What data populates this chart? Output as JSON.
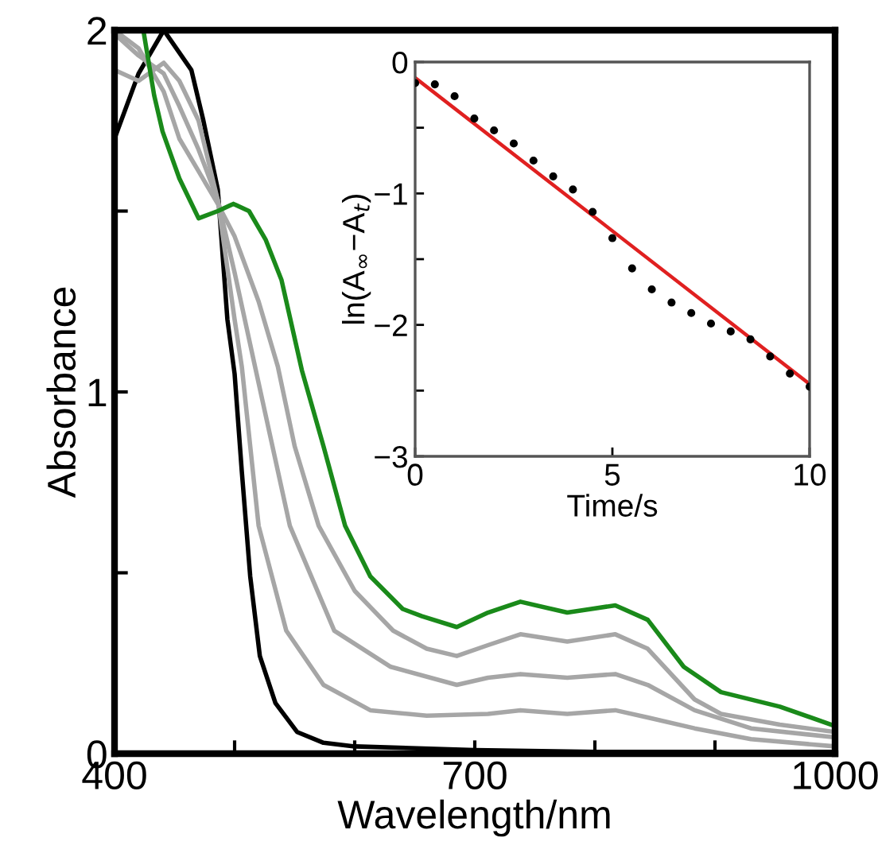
{
  "chart_data": [
    {
      "type": "line",
      "xlabel": "Wavelength/nm",
      "ylabel": "Absorbance",
      "xlim": [
        400,
        1000
      ],
      "ylim": [
        0,
        2
      ],
      "xticks": [
        400,
        {
          "value": 500,
          "label": null
        },
        {
          "value": 600,
          "label": null
        },
        700,
        {
          "value": 800,
          "label": null
        },
        {
          "value": 900,
          "label": null
        },
        1000
      ],
      "yticks": [
        0,
        {
          "value": 0.5,
          "label": null
        },
        1,
        {
          "value": 1.5,
          "label": null
        },
        2
      ],
      "grid": false,
      "legend": false,
      "series": [
        {
          "color": "#000000",
          "x": [
            400,
            420,
            441,
            464,
            474,
            486,
            494,
            500,
            506,
            513,
            521,
            534,
            552,
            574,
            600,
            700,
            800,
            1000
          ],
          "values": [
            1.7,
            1.88,
            2.0,
            1.89,
            1.75,
            1.56,
            1.2,
            1.05,
            0.78,
            0.49,
            0.27,
            0.14,
            0.06,
            0.03,
            0.02,
            0.01,
            0.005,
            0.005
          ]
        },
        {
          "color": "#a6a6a6",
          "x": [
            400,
            420,
            441,
            454,
            470,
            486,
            500,
            520,
            536,
            550,
            570,
            600,
            632,
            660,
            685,
            711,
            738,
            777,
            817,
            844,
            883,
            905,
            954,
            1000
          ],
          "values": [
            2.0,
            1.95,
            1.83,
            1.7,
            1.61,
            1.52,
            1.43,
            1.25,
            1.07,
            0.85,
            0.63,
            0.45,
            0.34,
            0.29,
            0.27,
            0.3,
            0.33,
            0.31,
            0.33,
            0.29,
            0.15,
            0.11,
            0.08,
            0.06
          ]
        },
        {
          "color": "#a6a6a6",
          "x": [
            400,
            420,
            441,
            454,
            470,
            486,
            500,
            517,
            546,
            583,
            630,
            685,
            711,
            738,
            777,
            817,
            844,
            883,
            930,
            1000
          ],
          "values": [
            1.99,
            1.93,
            1.88,
            1.79,
            1.67,
            1.53,
            1.33,
            1.07,
            0.63,
            0.34,
            0.24,
            0.19,
            0.21,
            0.22,
            0.21,
            0.22,
            0.19,
            0.12,
            0.07,
            0.045
          ]
        },
        {
          "color": "#a6a6a6",
          "x": [
            400,
            420,
            441,
            454,
            470,
            486,
            500,
            506,
            520,
            543,
            574,
            613,
            660,
            711,
            738,
            777,
            817,
            844,
            883,
            930,
            1000
          ],
          "values": [
            1.89,
            1.86,
            1.91,
            1.86,
            1.75,
            1.53,
            1.2,
            1.07,
            0.63,
            0.34,
            0.19,
            0.12,
            0.105,
            0.11,
            0.12,
            0.11,
            0.12,
            0.1,
            0.07,
            0.04,
            0.02
          ]
        },
        {
          "color": "#1a8a1a",
          "x": [
            424,
            433,
            440,
            454,
            470,
            486,
            499,
            512,
            526,
            539,
            556,
            574,
            592,
            613,
            640,
            656,
            685,
            711,
            738,
            777,
            817,
            844,
            874,
            905,
            954,
            997
          ],
          "values": [
            2.0,
            1.82,
            1.72,
            1.59,
            1.48,
            1.5,
            1.52,
            1.5,
            1.42,
            1.31,
            1.06,
            0.85,
            0.63,
            0.49,
            0.4,
            0.38,
            0.35,
            0.39,
            0.42,
            0.39,
            0.41,
            0.37,
            0.24,
            0.17,
            0.13,
            0.08
          ]
        }
      ]
    },
    {
      "type": "scatter",
      "xlabel": "Time/s",
      "ylabel": "ln(A$_{∞}$−A$_{t}$)",
      "xlim": [
        0,
        10
      ],
      "ylim": [
        -3,
        0
      ],
      "xticks": [
        0,
        5,
        10
      ],
      "yticks": [
        {
          "value": -3,
          "label": "−3"
        },
        {
          "value": -2.5,
          "label": null
        },
        {
          "value": -2,
          "label": "−2"
        },
        {
          "value": -1.5,
          "label": null
        },
        {
          "value": -1,
          "label": "−1"
        },
        {
          "value": -0.5,
          "label": null
        },
        0
      ],
      "grid": false,
      "legend": false,
      "series": [
        {
          "type": "scatter",
          "color": "#000000",
          "marker": "circle",
          "x": [
            0,
            0.5,
            1,
            1.5,
            2,
            2.5,
            3,
            3.5,
            4,
            4.5,
            5,
            5.5,
            6,
            6.5,
            7,
            7.5,
            8,
            8.5,
            9,
            9.5,
            10
          ],
          "values": [
            -0.16,
            -0.17,
            -0.26,
            -0.43,
            -0.52,
            -0.62,
            -0.75,
            -0.87,
            -0.97,
            -1.14,
            -1.34,
            -1.57,
            -1.73,
            -1.83,
            -1.91,
            -1.99,
            -2.05,
            -2.11,
            -2.24,
            -2.37,
            -2.47
          ]
        },
        {
          "type": "line",
          "color": "#e02020",
          "x": [
            0,
            10
          ],
          "values": [
            -0.12,
            -2.45
          ]
        }
      ]
    }
  ]
}
